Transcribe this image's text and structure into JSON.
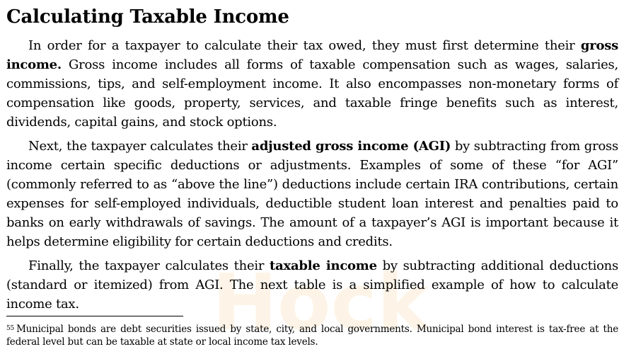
{
  "document": {
    "title": "Calculating Taxable Income",
    "paragraph1": {
      "text_before": "In order for a taxpayer to calculate their tax owed, they must first determine their ",
      "bold": "gross income.",
      "text_after": " Gross income includes all forms of taxable compensation such as wages, salaries, commissions, tips, and self-employment income. It also encompasses non-monetary forms of compensation like goods, property, services, and taxable fringe benefits such as interest, dividends, capital gains, and stock options."
    },
    "paragraph2": {
      "text_before": "Next, the taxpayer calculates their ",
      "bold": "adjusted gross income (AGI)",
      "text_after": " by subtracting from gross income certain specific deductions or adjustments. Examples of some of these “for AGI” (commonly referred to as “above the line”) deductions include certain IRA contributions, certain expenses for self-employed individuals, deductible student loan interest and penalties paid to banks on early withdrawals of savings. The amount of a taxpayer’s AGI is important because it helps determine eligibility for certain deductions and credits."
    },
    "paragraph3": {
      "text_before": "Finally, the taxpayer calculates their ",
      "bold": "taxable income",
      "text_after": " by subtracting additional deductions (standard or itemized) from AGI. The next table is a simplified example of how to calculate income tax."
    },
    "footnote": {
      "number": "55",
      "text": "Municipal bonds are debt securities issued by state, city, and local governments. Municipal bond interest is tax-free at the federal level but can be taxable at state or local income tax levels."
    }
  },
  "colors": {
    "watermark": "#f0a020"
  }
}
